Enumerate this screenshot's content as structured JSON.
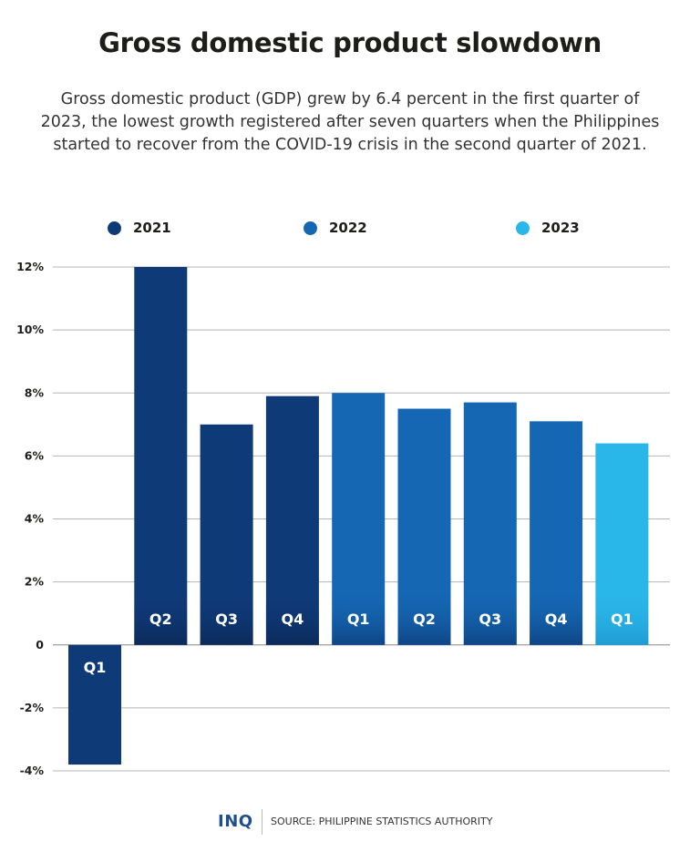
{
  "header": {
    "title": "Gross domestic product slowdown",
    "subtitle": "Gross domestic product (GDP) grew by 6.4 percent in the first quarter of 2023, the lowest growth registered after seven quarters when the Philippines started to recover from the COVID-19 crisis in the second quarter of 2021."
  },
  "legend": [
    {
      "label": "2021",
      "color": "#0f3a78"
    },
    {
      "label": "2022",
      "color": "#1566b3"
    },
    {
      "label": "2023",
      "color": "#29b6e8"
    }
  ],
  "chart_data": {
    "type": "bar",
    "categories": [
      "Q1",
      "Q2",
      "Q3",
      "Q4",
      "Q1",
      "Q2",
      "Q3",
      "Q4",
      "Q1"
    ],
    "years": [
      "2021",
      "2021",
      "2021",
      "2021",
      "2022",
      "2022",
      "2022",
      "2022",
      "2023"
    ],
    "values": [
      -3.8,
      12.0,
      7.0,
      7.9,
      8.0,
      7.5,
      7.7,
      7.1,
      6.4
    ],
    "ylim": [
      -4,
      12
    ],
    "yticks": [
      12,
      10,
      8,
      6,
      4,
      2,
      0,
      -2,
      -4
    ],
    "ytick_labels": [
      "12%",
      "10%",
      "8%",
      "6%",
      "4%",
      "2%",
      "0",
      "-2%",
      "-4%"
    ],
    "grid": true,
    "legend_position": "top",
    "colors": {
      "2021": "#0f3a78",
      "2022": "#1566b3",
      "2023": "#29b6e8"
    }
  },
  "footer": {
    "logo": "INQ",
    "source": "SOURCE: PHILIPPINE STATISTICS AUTHORITY"
  }
}
